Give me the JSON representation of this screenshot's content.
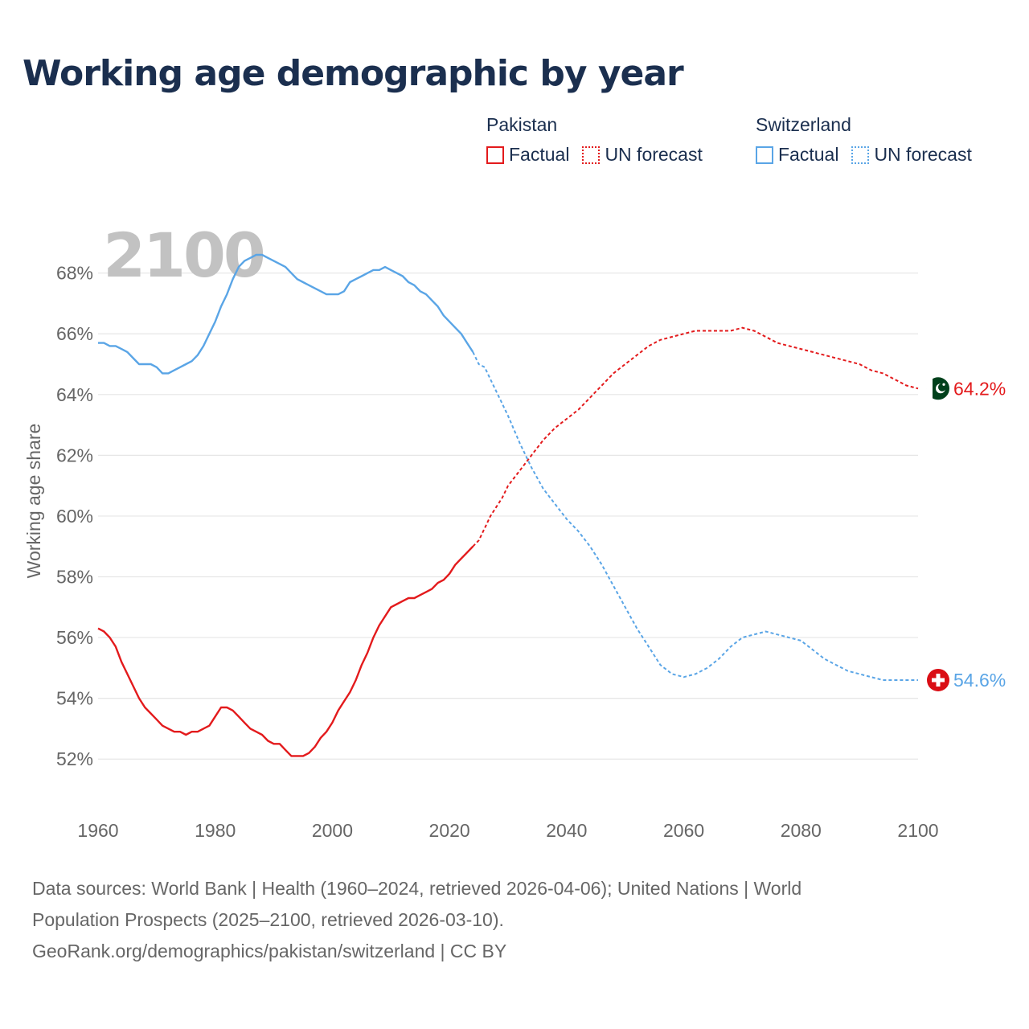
{
  "title": "Working age demographic by year",
  "legend": {
    "groups": [
      {
        "country": "Pakistan",
        "color": "#e31a1c",
        "items": [
          {
            "label": "Factual",
            "style": "solid"
          },
          {
            "label": "UN forecast",
            "style": "dotted"
          }
        ]
      },
      {
        "country": "Switzerland",
        "color": "#5aa5e6",
        "items": [
          {
            "label": "Factual",
            "style": "solid"
          },
          {
            "label": "UN forecast",
            "style": "dotted"
          }
        ]
      }
    ]
  },
  "footer": {
    "sources_line1": "Data sources: World Bank | Health (1960–2024, retrieved 2026-04-06); United Nations | World",
    "sources_line2": "Population Prospects (2025–2100, retrieved 2026-03-10).",
    "attribution": "GeoRank.org/demographics/pakistan/switzerland | CC BY"
  },
  "colors": {
    "pakistan": "#e31a1c",
    "switzerland": "#5aa5e6",
    "title": "#1b2f4f",
    "grid": "#e6e6e6",
    "axis_text": "#666666",
    "year_watermark": "#c2c2c2"
  },
  "chart_data": {
    "type": "line",
    "title": "Working age demographic by year",
    "xlabel": "",
    "ylabel": "Working age share",
    "current_year_label": "2100",
    "xlim": [
      1960,
      2100
    ],
    "ylim": [
      51,
      69.5
    ],
    "x_ticks": [
      1960,
      1980,
      2000,
      2020,
      2040,
      2060,
      2080,
      2100
    ],
    "y_ticks": [
      52,
      54,
      56,
      58,
      60,
      62,
      64,
      66,
      68
    ],
    "y_tick_labels": [
      "52%",
      "54%",
      "56%",
      "58%",
      "60%",
      "62%",
      "64%",
      "66%",
      "68%"
    ],
    "forecast_start_year": 2024,
    "series": [
      {
        "name": "Pakistan",
        "color": "#e31a1c",
        "flag_icon": "pakistan-flag-icon",
        "end_label": "64.2%",
        "x": [
          1960,
          1961,
          1962,
          1963,
          1964,
          1965,
          1966,
          1967,
          1968,
          1969,
          1970,
          1971,
          1972,
          1973,
          1974,
          1975,
          1976,
          1977,
          1978,
          1979,
          1980,
          1981,
          1982,
          1983,
          1984,
          1985,
          1986,
          1987,
          1988,
          1989,
          1990,
          1991,
          1992,
          1993,
          1994,
          1995,
          1996,
          1997,
          1998,
          1999,
          2000,
          2001,
          2002,
          2003,
          2004,
          2005,
          2006,
          2007,
          2008,
          2009,
          2010,
          2011,
          2012,
          2013,
          2014,
          2015,
          2016,
          2017,
          2018,
          2019,
          2020,
          2021,
          2022,
          2023,
          2024,
          2025,
          2026,
          2027,
          2028,
          2029,
          2030,
          2032,
          2034,
          2036,
          2038,
          2040,
          2042,
          2044,
          2046,
          2048,
          2050,
          2052,
          2054,
          2056,
          2058,
          2060,
          2062,
          2064,
          2066,
          2068,
          2070,
          2072,
          2074,
          2076,
          2078,
          2080,
          2082,
          2084,
          2086,
          2088,
          2090,
          2092,
          2094,
          2096,
          2098,
          2100
        ],
        "values": [
          56.3,
          56.2,
          56.0,
          55.7,
          55.2,
          54.8,
          54.4,
          54.0,
          53.7,
          53.5,
          53.3,
          53.1,
          53.0,
          52.9,
          52.9,
          52.8,
          52.9,
          52.9,
          53.0,
          53.1,
          53.4,
          53.7,
          53.7,
          53.6,
          53.4,
          53.2,
          53.0,
          52.9,
          52.8,
          52.6,
          52.5,
          52.5,
          52.3,
          52.1,
          52.1,
          52.1,
          52.2,
          52.4,
          52.7,
          52.9,
          53.2,
          53.6,
          53.9,
          54.2,
          54.6,
          55.1,
          55.5,
          56.0,
          56.4,
          56.7,
          57.0,
          57.1,
          57.2,
          57.3,
          57.3,
          57.4,
          57.5,
          57.6,
          57.8,
          57.9,
          58.1,
          58.4,
          58.6,
          58.8,
          59.0,
          59.2,
          59.6,
          60.0,
          60.3,
          60.6,
          61.0,
          61.5,
          62.0,
          62.5,
          62.9,
          63.2,
          63.5,
          63.9,
          64.3,
          64.7,
          65.0,
          65.3,
          65.6,
          65.8,
          65.9,
          66.0,
          66.1,
          66.1,
          66.1,
          66.1,
          66.2,
          66.1,
          65.9,
          65.7,
          65.6,
          65.5,
          65.4,
          65.3,
          65.2,
          65.1,
          65.0,
          64.8,
          64.7,
          64.5,
          64.3,
          64.2
        ]
      },
      {
        "name": "Switzerland",
        "color": "#5aa5e6",
        "flag_icon": "switzerland-flag-icon",
        "end_label": "54.6%",
        "x": [
          1960,
          1961,
          1962,
          1963,
          1964,
          1965,
          1966,
          1967,
          1968,
          1969,
          1970,
          1971,
          1972,
          1973,
          1974,
          1975,
          1976,
          1977,
          1978,
          1979,
          1980,
          1981,
          1982,
          1983,
          1984,
          1985,
          1986,
          1987,
          1988,
          1989,
          1990,
          1991,
          1992,
          1993,
          1994,
          1995,
          1996,
          1997,
          1998,
          1999,
          2000,
          2001,
          2002,
          2003,
          2004,
          2005,
          2006,
          2007,
          2008,
          2009,
          2010,
          2011,
          2012,
          2013,
          2014,
          2015,
          2016,
          2017,
          2018,
          2019,
          2020,
          2021,
          2022,
          2023,
          2024,
          2025,
          2026,
          2027,
          2028,
          2029,
          2030,
          2032,
          2034,
          2036,
          2038,
          2040,
          2042,
          2044,
          2046,
          2048,
          2050,
          2052,
          2054,
          2056,
          2058,
          2060,
          2062,
          2064,
          2066,
          2068,
          2070,
          2072,
          2074,
          2076,
          2078,
          2080,
          2082,
          2084,
          2086,
          2088,
          2090,
          2092,
          2094,
          2096,
          2098,
          2100
        ],
        "values": [
          65.7,
          65.7,
          65.6,
          65.6,
          65.5,
          65.4,
          65.2,
          65.0,
          65.0,
          65.0,
          64.9,
          64.7,
          64.7,
          64.8,
          64.9,
          65.0,
          65.1,
          65.3,
          65.6,
          66.0,
          66.4,
          66.9,
          67.3,
          67.8,
          68.2,
          68.4,
          68.5,
          68.6,
          68.6,
          68.5,
          68.4,
          68.3,
          68.2,
          68.0,
          67.8,
          67.7,
          67.6,
          67.5,
          67.4,
          67.3,
          67.3,
          67.3,
          67.4,
          67.7,
          67.8,
          67.9,
          68.0,
          68.1,
          68.1,
          68.2,
          68.1,
          68.0,
          67.9,
          67.7,
          67.6,
          67.4,
          67.3,
          67.1,
          66.9,
          66.6,
          66.4,
          66.2,
          66.0,
          65.7,
          65.4,
          65.0,
          64.9,
          64.5,
          64.1,
          63.7,
          63.3,
          62.4,
          61.6,
          60.9,
          60.4,
          59.9,
          59.5,
          59.0,
          58.4,
          57.7,
          57.0,
          56.3,
          55.7,
          55.1,
          54.8,
          54.7,
          54.8,
          55.0,
          55.3,
          55.7,
          56.0,
          56.1,
          56.2,
          56.1,
          56.0,
          55.9,
          55.6,
          55.3,
          55.1,
          54.9,
          54.8,
          54.7,
          54.6,
          54.6,
          54.6,
          54.6
        ]
      }
    ]
  }
}
